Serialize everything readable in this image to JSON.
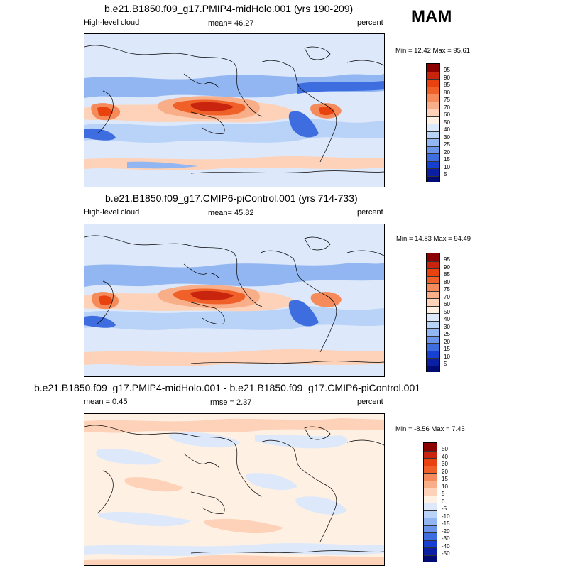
{
  "season": "MAM",
  "panels": [
    {
      "title": "b.e21.B1850.f09_g17.PMIP4-midHolo.001 (yrs 190-209)",
      "left_label": "High-level cloud",
      "mean_label": "mean=  46.27",
      "units": "percent",
      "minmax": "Min =  12.42 Max =  95.61",
      "kind": "absolute"
    },
    {
      "title": "b.e21.B1850.f09_g17.CMIP6-piControl.001 (yrs 714-733)",
      "left_label": "High-level cloud",
      "mean_label": "mean=  45.82",
      "units": "percent",
      "minmax": "Min =  14.83 Max =  94.49",
      "kind": "absolute"
    },
    {
      "title": "b.e21.B1850.f09_g17.PMIP4-midHolo.001 - b.e21.B1850.f09_g17.CMIP6-piControl.001",
      "left_label": "mean =   0.45",
      "mean_label": "rmse =   2.37",
      "units": "percent",
      "minmax": "Min =  -8.56 Max =   7.45",
      "kind": "difference"
    }
  ],
  "colorbars": {
    "absolute": {
      "levels": [
        "95",
        "90",
        "85",
        "80",
        "75",
        "70",
        "60",
        "50",
        "40",
        "30",
        "25",
        "20",
        "15",
        "10",
        "5"
      ],
      "colors": [
        "#8b0000",
        "#c8240e",
        "#e8420f",
        "#f0612a",
        "#f58a5a",
        "#f9ae8a",
        "#fdd2b8",
        "#fef0e3",
        "#dde9fb",
        "#b9d2f7",
        "#92b6f1",
        "#6a95ea",
        "#3e6de0",
        "#1540d1",
        "#0a1fa3",
        "#000c73"
      ]
    },
    "difference": {
      "levels": [
        "50",
        "40",
        "30",
        "20",
        "15",
        "10",
        "5",
        "0",
        "-5",
        "-10",
        "-15",
        "-20",
        "-30",
        "-40",
        "-50"
      ],
      "colors": [
        "#8b0000",
        "#c8240e",
        "#e8420f",
        "#f0612a",
        "#f58a5a",
        "#f9ae8a",
        "#fdd2b8",
        "#fef0e3",
        "#dde9fb",
        "#b9d2f7",
        "#92b6f1",
        "#6a95ea",
        "#3e6de0",
        "#1540d1",
        "#0a1fa3",
        "#000c73"
      ]
    }
  }
}
